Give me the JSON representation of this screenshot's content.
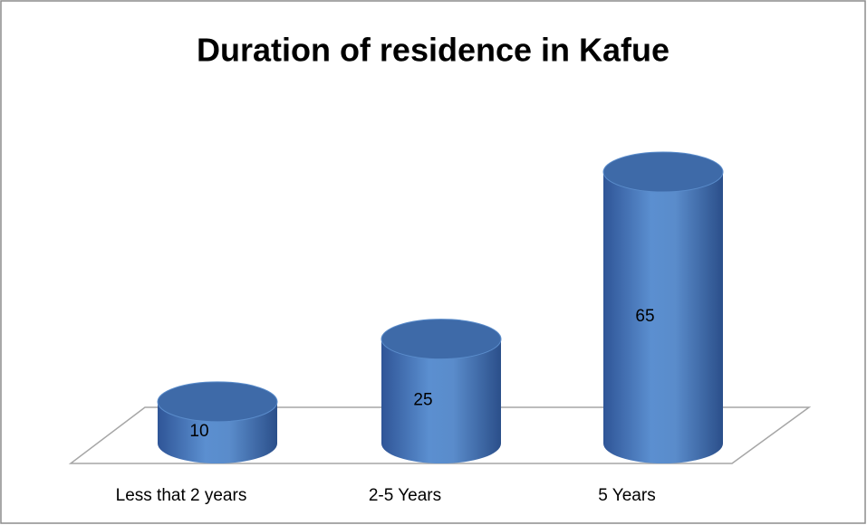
{
  "chart_data": {
    "type": "bar",
    "title": "Duration of residence in Kafue",
    "categories": [
      "Less that 2 years",
      "2-5 Years",
      "5 Years"
    ],
    "values": [
      10,
      25,
      65
    ],
    "color": "#4f81bd"
  }
}
